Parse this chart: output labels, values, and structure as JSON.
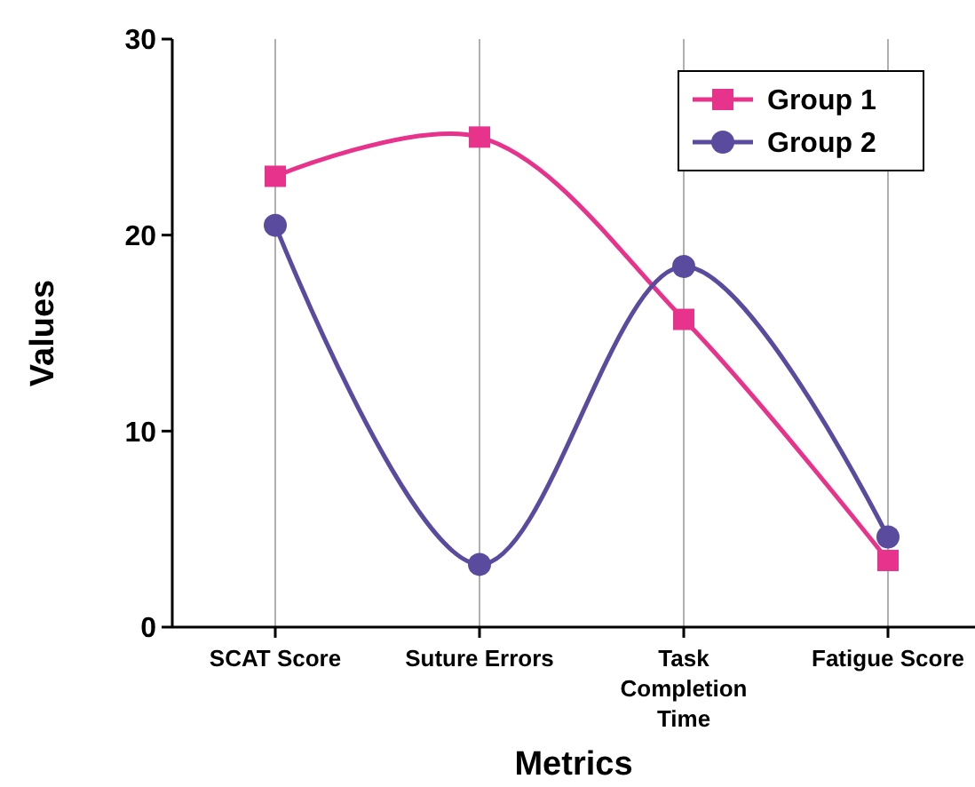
{
  "chart_data": {
    "type": "line",
    "xlabel": "Metrics",
    "ylabel": "Values",
    "categories": [
      "SCAT Score",
      "Suture Errors",
      "Task Completion Time",
      "Fatigue Score"
    ],
    "series": [
      {
        "name": "Group 1",
        "color": "#e8338c",
        "values": [
          23,
          25,
          15.7,
          3.4
        ],
        "marker": "square"
      },
      {
        "name": "Group 2",
        "color": "#5a4b9e",
        "values": [
          20.5,
          3.2,
          18.4,
          4.6
        ],
        "marker": "circle"
      }
    ],
    "ylim": [
      0,
      30
    ],
    "yticks": [
      0,
      10,
      20,
      30
    ],
    "grid": "x",
    "legend": "top right"
  }
}
